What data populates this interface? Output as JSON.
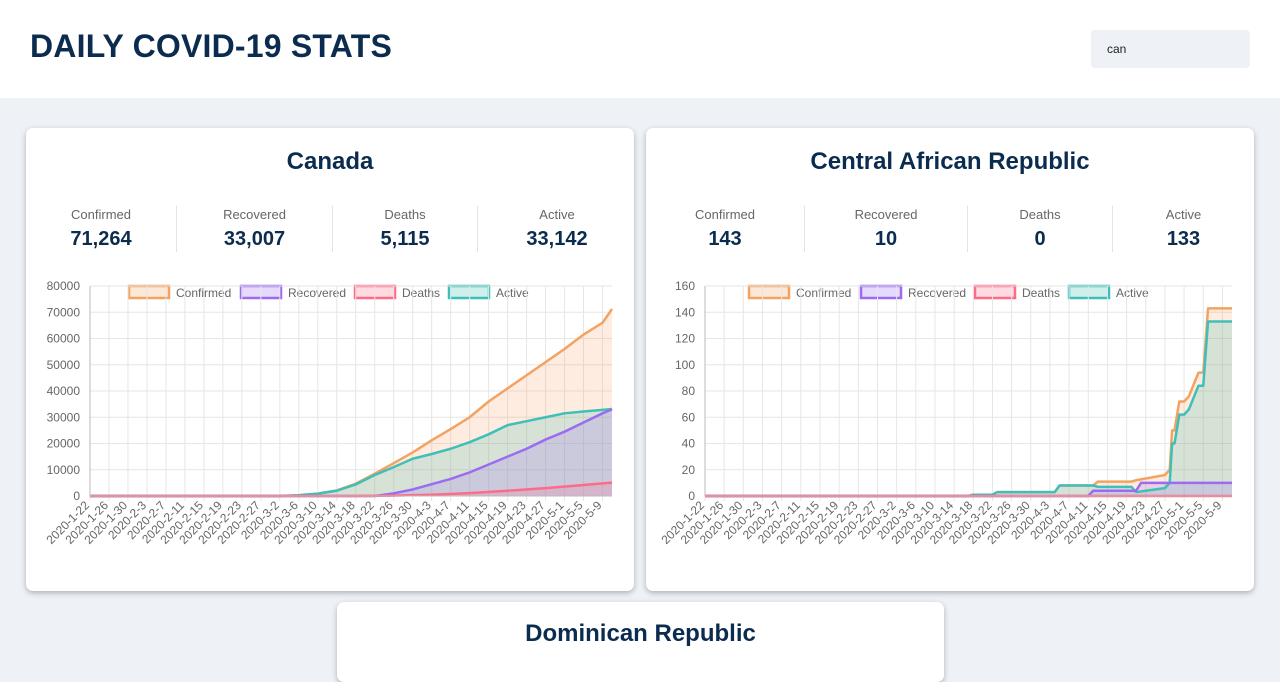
{
  "header": {
    "title": "DAILY COVID-19 STATS",
    "search": {
      "value": "can",
      "placeholder": ""
    }
  },
  "legend": [
    "Confirmed",
    "Recovered",
    "Deaths",
    "Active"
  ],
  "colors": {
    "confirmed": "#f4a261",
    "recovered": "#9b6bf2",
    "deaths": "#ff6b86",
    "active": "#3fbfb8",
    "title": "#0b2c4f"
  },
  "cards": [
    {
      "country": "Canada",
      "stats": [
        {
          "label": "Confirmed",
          "value": "71,264"
        },
        {
          "label": "Recovered",
          "value": "33,007"
        },
        {
          "label": "Deaths",
          "value": "5,115"
        },
        {
          "label": "Active",
          "value": "33,142"
        }
      ]
    },
    {
      "country": "Central African Republic",
      "stats": [
        {
          "label": "Confirmed",
          "value": "143"
        },
        {
          "label": "Recovered",
          "value": "10"
        },
        {
          "label": "Deaths",
          "value": "0"
        },
        {
          "label": "Active",
          "value": "133"
        }
      ]
    },
    {
      "country": "Dominican Republic",
      "stats": []
    }
  ],
  "chart_data": [
    {
      "type": "line",
      "title": "Canada",
      "x_tick_labels": [
        "2020-1-22",
        "2020-1-26",
        "2020-1-30",
        "2020-2-3",
        "2020-2-7",
        "2020-2-11",
        "2020-2-15",
        "2020-2-19",
        "2020-2-23",
        "2020-2-27",
        "2020-3-2",
        "2020-3-6",
        "2020-3-10",
        "2020-3-14",
        "2020-3-18",
        "2020-3-22",
        "2020-3-26",
        "2020-3-30",
        "2020-4-3",
        "2020-4-7",
        "2020-4-11",
        "2020-4-15",
        "2020-4-19",
        "2020-4-23",
        "2020-4-27",
        "2020-5-1",
        "2020-5-5",
        "2020-5-9"
      ],
      "ylim": [
        0,
        80000
      ],
      "yticks": [
        0,
        10000,
        20000,
        30000,
        40000,
        50000,
        60000,
        70000,
        80000
      ],
      "grid": true,
      "legend_position": "top",
      "series": [
        {
          "name": "Confirmed",
          "x": [
            0,
            40,
            44,
            48,
            52,
            56,
            60,
            64,
            68,
            72,
            76,
            80,
            84,
            88,
            92,
            96,
            100,
            104,
            108,
            110
          ],
          "y": [
            0,
            0,
            300,
            900,
            2100,
            4700,
            8500,
            12500,
            16600,
            21200,
            25500,
            30000,
            36000,
            41000,
            46000,
            51000,
            56000,
            61500,
            66000,
            71264
          ]
        },
        {
          "name": "Recovered",
          "x": [
            0,
            60,
            64,
            68,
            72,
            76,
            80,
            84,
            88,
            92,
            96,
            100,
            104,
            108,
            110
          ],
          "y": [
            0,
            0,
            1000,
            2500,
            4500,
            6500,
            9000,
            12000,
            15000,
            18000,
            21500,
            24500,
            28000,
            31500,
            33007
          ]
        },
        {
          "name": "Deaths",
          "x": [
            0,
            56,
            64,
            72,
            80,
            88,
            96,
            104,
            110
          ],
          "y": [
            0,
            0,
            150,
            500,
            1100,
            2000,
            3000,
            4200,
            5115
          ]
        },
        {
          "name": "Active",
          "x": [
            0,
            40,
            44,
            48,
            52,
            56,
            60,
            64,
            68,
            72,
            76,
            80,
            84,
            88,
            92,
            96,
            100,
            104,
            108,
            110
          ],
          "y": [
            0,
            0,
            300,
            900,
            2000,
            4400,
            8000,
            11000,
            14200,
            16000,
            18000,
            20500,
            23500,
            27000,
            28500,
            30000,
            31500,
            32200,
            32800,
            33142
          ]
        }
      ]
    },
    {
      "type": "line",
      "title": "Central African Republic",
      "x_tick_labels": [
        "2020-1-22",
        "2020-1-26",
        "2020-1-30",
        "2020-2-3",
        "2020-2-7",
        "2020-2-11",
        "2020-2-15",
        "2020-2-19",
        "2020-2-23",
        "2020-2-27",
        "2020-3-2",
        "2020-3-6",
        "2020-3-10",
        "2020-3-14",
        "2020-3-18",
        "2020-3-22",
        "2020-3-26",
        "2020-3-30",
        "2020-4-3",
        "2020-4-7",
        "2020-4-11",
        "2020-4-15",
        "2020-4-19",
        "2020-4-23",
        "2020-4-27",
        "2020-5-1",
        "2020-5-5",
        "2020-5-9"
      ],
      "ylim": [
        0,
        160
      ],
      "yticks": [
        0,
        20,
        40,
        60,
        80,
        100,
        120,
        140,
        160
      ],
      "grid": true,
      "legend_position": "top",
      "series": [
        {
          "name": "Confirmed",
          "x": [
            0,
            55,
            56,
            60,
            61,
            73,
            74,
            81,
            82,
            89,
            90,
            96,
            97,
            97.5,
            98,
            99,
            100,
            101,
            102,
            103,
            104,
            105,
            106,
            107,
            110
          ],
          "y": [
            0,
            0,
            1,
            1,
            3,
            3,
            8,
            8,
            11,
            11,
            12,
            16,
            20,
            50,
            50,
            72,
            72,
            76,
            85,
            94,
            94,
            143,
            143,
            143,
            143
          ]
        },
        {
          "name": "Recovered",
          "x": [
            0,
            80,
            81,
            90,
            91,
            110
          ],
          "y": [
            0,
            0,
            4,
            4,
            10,
            10
          ]
        },
        {
          "name": "Deaths",
          "x": [
            0,
            110
          ],
          "y": [
            0,
            0
          ]
        },
        {
          "name": "Active",
          "x": [
            0,
            55,
            56,
            60,
            61,
            73,
            74,
            81,
            82,
            89,
            90,
            96,
            97,
            97.5,
            98,
            99,
            100,
            101,
            102,
            103,
            104,
            105,
            106,
            107,
            110
          ],
          "y": [
            0,
            0,
            1,
            1,
            3,
            3,
            8,
            8,
            7,
            7,
            3,
            6,
            10,
            40,
            40,
            62,
            62,
            66,
            75,
            84,
            84,
            133,
            133,
            133,
            133
          ]
        }
      ]
    }
  ]
}
